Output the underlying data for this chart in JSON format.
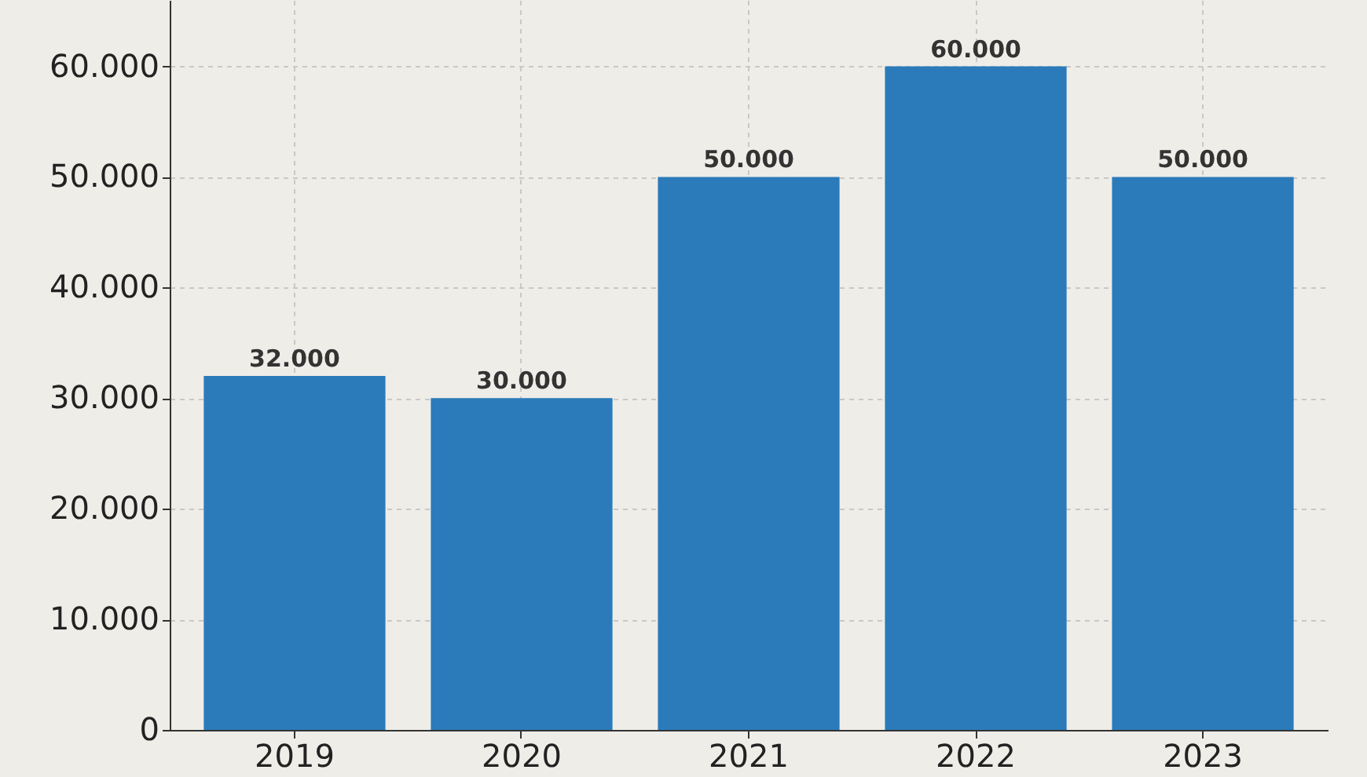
{
  "chart_data": {
    "type": "bar",
    "categories": [
      "2019",
      "2020",
      "2021",
      "2022",
      "2023"
    ],
    "values": [
      32000,
      30000,
      50000,
      60000,
      50000
    ],
    "value_labels": [
      "32.000",
      "30.000",
      "50.000",
      "60.000",
      "50.000"
    ],
    "color": "#2b7bba",
    "ylim": [
      0,
      66000
    ],
    "yticks": [
      0,
      {
        "value": 10000,
        "label": "10.000"
      },
      {
        "value": 20000,
        "label": "20.000"
      },
      {
        "value": 30000,
        "label": "30.000"
      },
      {
        "value": 40000,
        "label": "40.000"
      },
      {
        "value": 50000,
        "label": "50.000"
      },
      {
        "value": 60000,
        "label": "60.000"
      }
    ],
    "grid": true
  }
}
